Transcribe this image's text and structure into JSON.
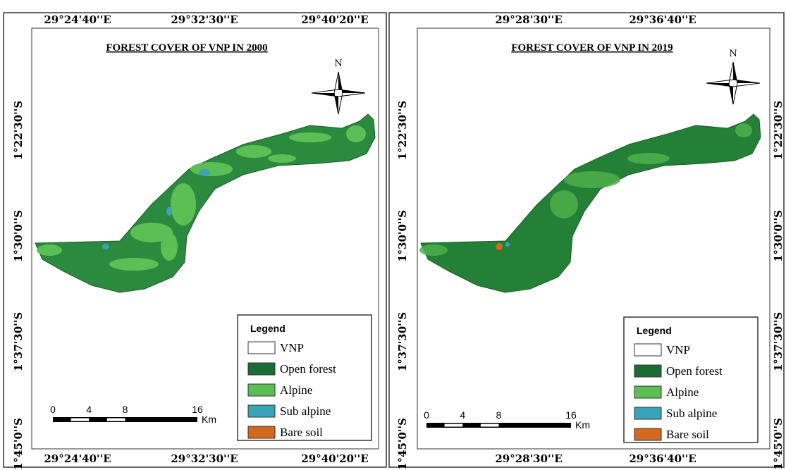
{
  "panels": [
    {
      "title": "FOREST COVER  OF VNP IN 2000",
      "top_labels": [
        "29°24'40''E",
        "29°32'30''E",
        "29°40'20''E"
      ],
      "bottom_labels": [
        "29°24'40''E",
        "29°32'30''E",
        "29°40'20''E"
      ],
      "left_labels": [
        "1°22'30''S",
        "1°30'0''S",
        "1°37'30''S",
        "1°45'0''S"
      ],
      "right_labels": [],
      "north": "N",
      "scale": {
        "ticks": [
          "0",
          "4",
          "8",
          "16"
        ],
        "unit": "Km"
      },
      "legend": {
        "title": "Legend",
        "items": [
          {
            "label": "VNP",
            "color": "#ffffff"
          },
          {
            "label": "Open forest",
            "color": "#1b6b35"
          },
          {
            "label": "Alpine",
            "color": "#5cbf55"
          },
          {
            "label": "Sub alpine",
            "color": "#3aa3b5"
          },
          {
            "label": "Bare soil",
            "color": "#d2691e"
          }
        ]
      }
    },
    {
      "title": "FOREST COVER OF VNP IN 2019",
      "top_labels": [
        "29°28'30''E",
        "29°36'40''E"
      ],
      "bottom_labels": [
        "29°28'30''E",
        "29°36'40''E"
      ],
      "left_labels": [
        "1°22'30''S",
        "1°30'0''S",
        "1°37'30''S",
        "1°45'0''S"
      ],
      "right_labels": [
        "1°22'30''S",
        "1°30'0''S",
        "1°37'30''S",
        "1°45'0''S"
      ],
      "north": "N",
      "scale": {
        "ticks": [
          "0",
          "4",
          "8",
          "16"
        ],
        "unit": "Km"
      },
      "legend": {
        "title": "Legend",
        "items": [
          {
            "label": "VNP",
            "color": "#ffffff"
          },
          {
            "label": "Open forest",
            "color": "#1b6b35"
          },
          {
            "label": "Alpine",
            "color": "#5cbf55"
          },
          {
            "label": "Sub alpine",
            "color": "#3aa3b5"
          },
          {
            "label": "Bare soil",
            "color": "#d2691e"
          }
        ]
      }
    }
  ]
}
